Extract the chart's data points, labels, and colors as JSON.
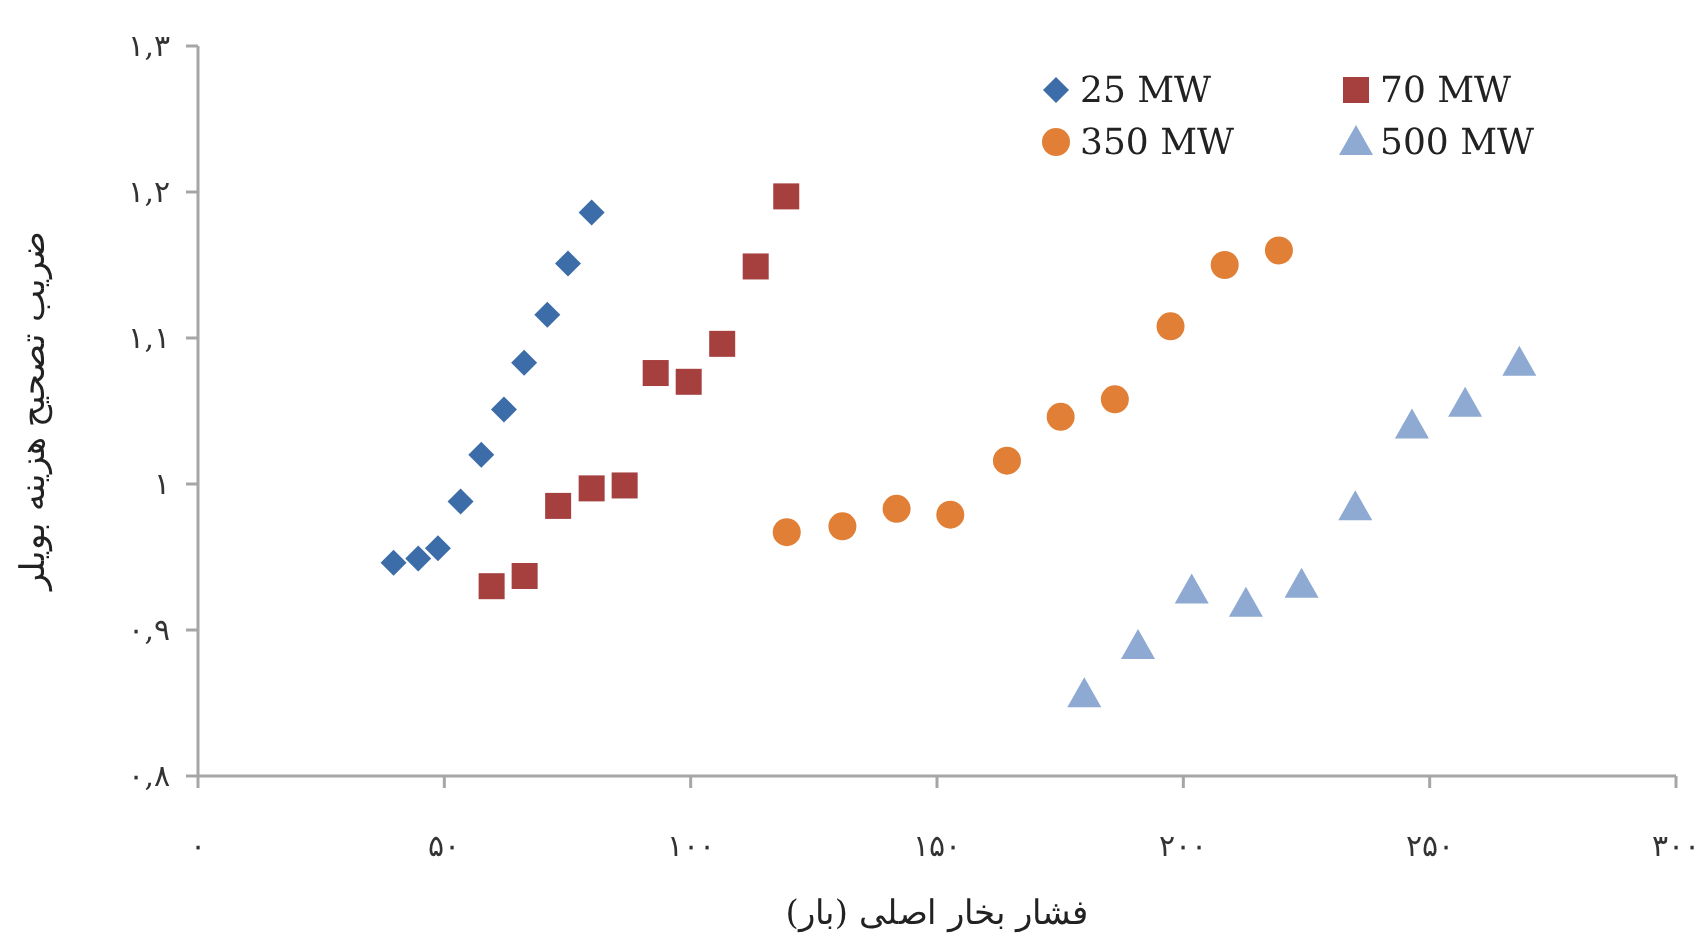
{
  "chart_data": {
    "type": "scatter",
    "xlabel": "فشار بخار اصلی (بار)",
    "ylabel": "ضریب تصحیح هزینه بویلر",
    "xlim": [
      0,
      300
    ],
    "ylim": [
      0.8,
      1.3
    ],
    "xticks": [
      {
        "value": 0,
        "label": "۰"
      },
      {
        "value": 50,
        "label": "۵۰"
      },
      {
        "value": 100,
        "label": "۱۰۰"
      },
      {
        "value": 150,
        "label": "۱۵۰"
      },
      {
        "value": 200,
        "label": "۲۰۰"
      },
      {
        "value": 250,
        "label": "۲۵۰"
      },
      {
        "value": 300,
        "label": "۳۰۰"
      }
    ],
    "yticks": [
      {
        "value": 0.8,
        "label": "۰,۸"
      },
      {
        "value": 0.9,
        "label": "۰,۹"
      },
      {
        "value": 1,
        "label": "۱"
      },
      {
        "value": 1.1,
        "label": "۱,۱"
      },
      {
        "value": 1.2,
        "label": "۱,۲"
      },
      {
        "value": 1.3,
        "label": "۱,۳"
      }
    ],
    "grid": false,
    "legend": "top right",
    "series": [
      {
        "name": "25 MW",
        "color": "#3d6da8",
        "marker": "diamond",
        "x": [
          39.7,
          44.7,
          48.7,
          53.3,
          57.5,
          62.1,
          66.2,
          70.9,
          75.1,
          79.9
        ],
        "values": [
          0.946,
          0.949,
          0.956,
          0.988,
          1.02,
          1.051,
          1.083,
          1.116,
          1.151,
          1.186
        ]
      },
      {
        "name": "70 MW",
        "color": "#a5403f",
        "marker": "square",
        "x": [
          59.6,
          66.3,
          73.1,
          79.9,
          86.6,
          92.9,
          99.6,
          106.4,
          113.2,
          119.4
        ],
        "values": [
          0.93,
          0.937,
          0.985,
          0.997,
          0.999,
          1.076,
          1.07,
          1.096,
          1.149,
          1.197
        ]
      },
      {
        "name": "350 MW",
        "color": "#e07f35",
        "marker": "circle",
        "x": [
          119.5,
          130.8,
          141.8,
          152.7,
          164.2,
          175.1,
          186.1,
          197.4,
          208.4,
          219.4
        ],
        "values": [
          0.967,
          0.971,
          0.983,
          0.979,
          1.016,
          1.046,
          1.058,
          1.108,
          1.15,
          1.16
        ]
      },
      {
        "name": "500 MW",
        "color": "#8ea9d2",
        "marker": "triangle",
        "x": [
          179.9,
          190.8,
          201.7,
          212.7,
          224.0,
          234.9,
          246.4,
          257.2,
          268.2
        ],
        "values": [
          0.856,
          0.889,
          0.927,
          0.918,
          0.931,
          0.984,
          1.04,
          1.055,
          1.083
        ]
      }
    ]
  }
}
